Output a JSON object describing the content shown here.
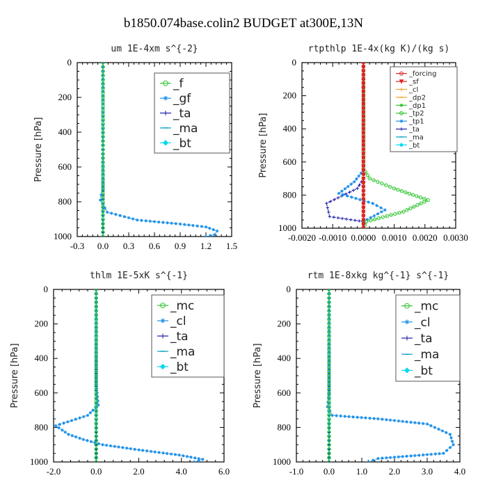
{
  "suptitle": "b1850.074base.colin2  BUDGET at300E,13N",
  "colors": {
    "green": "#2ec42e",
    "blue": "#1e90e8",
    "navy": "#1a1aa8",
    "red": "#e02020",
    "orange": "#f0a020",
    "cyan": "#00d8f0"
  },
  "chart_data": [
    {
      "type": "line",
      "title": "um  1E-4xm s^{-2}",
      "ylabel": "Pressure [hPa]",
      "xlim": [
        -0.3,
        1.5
      ],
      "ylim": [
        1000,
        0
      ],
      "xticks": [
        "-0.3",
        "0.0",
        "0.3",
        "0.6",
        "0.9",
        "1.2",
        "1.5"
      ],
      "xtick_values": [
        -0.3,
        0.0,
        0.3,
        0.6,
        0.9,
        1.2,
        1.5
      ],
      "yticks": [
        "0",
        "200",
        "400",
        "600",
        "800",
        "1000"
      ],
      "legend_placement": "top-right",
      "series": [
        {
          "name": "_f",
          "color": "#2ec42e",
          "marker": "circle",
          "points": [
            [
              0,
              0
            ],
            [
              0,
              200
            ],
            [
              0,
              400
            ],
            [
              0,
              600
            ],
            [
              0,
              800
            ],
            [
              0,
              1000
            ]
          ]
        },
        {
          "name": "_gf",
          "color": "#1e90e8",
          "marker": "star",
          "points": [
            [
              0,
              0
            ],
            [
              0,
              500
            ],
            [
              0,
              730
            ],
            [
              -0.02,
              760
            ],
            [
              -0.03,
              790
            ],
            [
              0.05,
              860
            ],
            [
              0.4,
              905
            ],
            [
              0.9,
              928
            ],
            [
              1.2,
              945
            ],
            [
              1.33,
              968
            ],
            [
              1.3,
              990
            ],
            [
              1.2,
              1000
            ]
          ]
        },
        {
          "name": "_ta",
          "color": "#1a1aa8",
          "marker": "plus",
          "points": [
            [
              0,
              0
            ],
            [
              0,
              1000
            ]
          ]
        },
        {
          "name": "_ma",
          "color": "#00a0c0",
          "marker": "dash",
          "points": [
            [
              0,
              0
            ],
            [
              0,
              1000
            ]
          ]
        },
        {
          "name": "_bt",
          "color": "#00d8f0",
          "marker": "diamond",
          "points": [
            [
              0,
              0
            ],
            [
              0,
              1000
            ]
          ]
        }
      ]
    },
    {
      "type": "line",
      "title": "rtpthlp  1E-4x(kg K)/(kg s)",
      "ylabel": "Pressure [hPa]",
      "xlim": [
        -0.002,
        0.003
      ],
      "ylim": [
        1000,
        0
      ],
      "xticks": [
        "-0.0020",
        "-0.0010",
        "0.0000",
        "0.0010",
        "0.0020",
        "0.0030"
      ],
      "xtick_values": [
        -0.002,
        -0.001,
        0.0,
        0.001,
        0.002,
        0.003
      ],
      "yticks": [
        "0",
        "200",
        "400",
        "600",
        "800",
        "1000"
      ],
      "legend_placement": "top-right",
      "series": [
        {
          "name": "_forcing",
          "color": "#e02020",
          "marker": "circle",
          "points": [
            [
              0,
              0
            ],
            [
              0,
              1000
            ]
          ]
        },
        {
          "name": "_sf",
          "color": "#e02020",
          "marker": "tri",
          "points": [
            [
              0,
              0
            ],
            [
              0,
              1000
            ]
          ]
        },
        {
          "name": "_cl",
          "color": "#f0a020",
          "marker": "plus",
          "points": [
            [
              0,
              0
            ],
            [
              0,
              1000
            ]
          ]
        },
        {
          "name": "_dp2",
          "color": "#f0a020",
          "marker": "dash",
          "points": [
            [
              0,
              0
            ],
            [
              0,
              1000
            ]
          ]
        },
        {
          "name": "_dp1",
          "color": "#2ec42e",
          "marker": "star",
          "points": [
            [
              0,
              0
            ],
            [
              0,
              1000
            ]
          ]
        },
        {
          "name": "_tp2",
          "color": "#2ec42e",
          "marker": "circle",
          "points": [
            [
              0,
              0
            ],
            [
              0,
              640
            ],
            [
              0.0002,
              700
            ],
            [
              0.001,
              760
            ],
            [
              0.0021,
              830
            ],
            [
              0.0013,
              900
            ],
            [
              0.0001,
              960
            ],
            [
              0,
              1000
            ]
          ]
        },
        {
          "name": "_tp1",
          "color": "#1e90e8",
          "marker": "star",
          "points": [
            [
              0,
              0
            ],
            [
              0,
              650
            ],
            [
              -0.0003,
              720
            ],
            [
              -0.0008,
              790
            ],
            [
              0.0003,
              850
            ],
            [
              0.0007,
              890
            ],
            [
              0,
              960
            ],
            [
              0,
              1000
            ]
          ]
        },
        {
          "name": "_ta",
          "color": "#1a1aa8",
          "marker": "plus",
          "points": [
            [
              0,
              0
            ],
            [
              0,
              700
            ],
            [
              -0.0002,
              760
            ],
            [
              -0.0012,
              850
            ],
            [
              -0.0011,
              930
            ],
            [
              0,
              960
            ],
            [
              0,
              1000
            ]
          ]
        },
        {
          "name": "_ma",
          "color": "#00a0c0",
          "marker": "dash",
          "points": [
            [
              0,
              0
            ],
            [
              0,
              1000
            ]
          ]
        },
        {
          "name": "_bt",
          "color": "#00d8f0",
          "marker": "diamond",
          "points": [
            [
              0,
              0
            ],
            [
              0,
              1000
            ]
          ]
        }
      ]
    },
    {
      "type": "line",
      "title": "thlm  1E-5xK s^{-1}",
      "ylabel": "Pressure [hPa]",
      "xlim": [
        -2.0,
        6.0
      ],
      "ylim": [
        1000,
        0
      ],
      "xticks": [
        "-2.0",
        "0.0",
        "2.0",
        "4.0",
        "6.0"
      ],
      "xtick_values": [
        -2.0,
        0.0,
        2.0,
        4.0,
        6.0
      ],
      "yticks": [
        "0",
        "200",
        "400",
        "600",
        "800",
        "1000"
      ],
      "legend_placement": "top-right",
      "series": [
        {
          "name": "_mc",
          "color": "#2ec42e",
          "marker": "circle",
          "points": [
            [
              0,
              0
            ],
            [
              0,
              200
            ],
            [
              0,
              400
            ],
            [
              0,
              600
            ],
            [
              0,
              800
            ],
            [
              0,
              1000
            ]
          ]
        },
        {
          "name": "_cl",
          "color": "#1e90e8",
          "marker": "star",
          "points": [
            [
              0,
              0
            ],
            [
              0,
              550
            ],
            [
              0.1,
              670
            ],
            [
              -0.4,
              730
            ],
            [
              -1.9,
              790
            ],
            [
              -1.3,
              840
            ],
            [
              -0.6,
              870
            ],
            [
              0.3,
              900
            ],
            [
              2.0,
              930
            ],
            [
              3.9,
              960
            ],
            [
              5.0,
              985
            ],
            [
              4.8,
              995
            ],
            [
              4.6,
              1000
            ]
          ]
        },
        {
          "name": "_ta",
          "color": "#1a1aa8",
          "marker": "plus",
          "points": [
            [
              0,
              0
            ],
            [
              0,
              1000
            ]
          ]
        },
        {
          "name": "_ma",
          "color": "#00a0c0",
          "marker": "dash",
          "points": [
            [
              0,
              0
            ],
            [
              0,
              1000
            ]
          ]
        },
        {
          "name": "_bt",
          "color": "#00d8f0",
          "marker": "diamond",
          "points": [
            [
              0,
              0
            ],
            [
              0,
              1000
            ]
          ]
        }
      ]
    },
    {
      "type": "line",
      "title": "rtm  1E-8xkg kg^{-1} s^{-1}",
      "ylabel": "Pressure [hPa]",
      "xlim": [
        -1.0,
        4.0
      ],
      "ylim": [
        1000,
        0
      ],
      "xticks": [
        "-1.0",
        "0.0",
        "1.0",
        "2.0",
        "3.0",
        "4.0"
      ],
      "xtick_values": [
        -1.0,
        0.0,
        1.0,
        2.0,
        3.0,
        4.0
      ],
      "yticks": [
        "0",
        "200",
        "400",
        "600",
        "800",
        "1000"
      ],
      "legend_placement": "top-right",
      "series": [
        {
          "name": "_mc",
          "color": "#2ec42e",
          "marker": "circle",
          "points": [
            [
              0,
              0
            ],
            [
              0,
              200
            ],
            [
              0,
              400
            ],
            [
              0,
              600
            ],
            [
              0,
              800
            ],
            [
              0,
              1000
            ]
          ]
        },
        {
          "name": "_cl",
          "color": "#1e90e8",
          "marker": "star",
          "points": [
            [
              0,
              0
            ],
            [
              0,
              600
            ],
            [
              -0.05,
              680
            ],
            [
              0.1,
              730
            ],
            [
              1.5,
              750
            ],
            [
              3.0,
              780
            ],
            [
              3.7,
              840
            ],
            [
              3.8,
              900
            ],
            [
              3.5,
              950
            ],
            [
              1.5,
              980
            ],
            [
              1.2,
              1000
            ]
          ]
        },
        {
          "name": "_ta",
          "color": "#1a1aa8",
          "marker": "plus",
          "points": [
            [
              0,
              0
            ],
            [
              0,
              1000
            ]
          ]
        },
        {
          "name": "_ma",
          "color": "#00a0c0",
          "marker": "dash",
          "points": [
            [
              0,
              0
            ],
            [
              0,
              1000
            ]
          ]
        },
        {
          "name": "_bt",
          "color": "#00d8f0",
          "marker": "diamond",
          "points": [
            [
              0,
              0
            ],
            [
              0,
              1000
            ]
          ]
        }
      ]
    }
  ]
}
